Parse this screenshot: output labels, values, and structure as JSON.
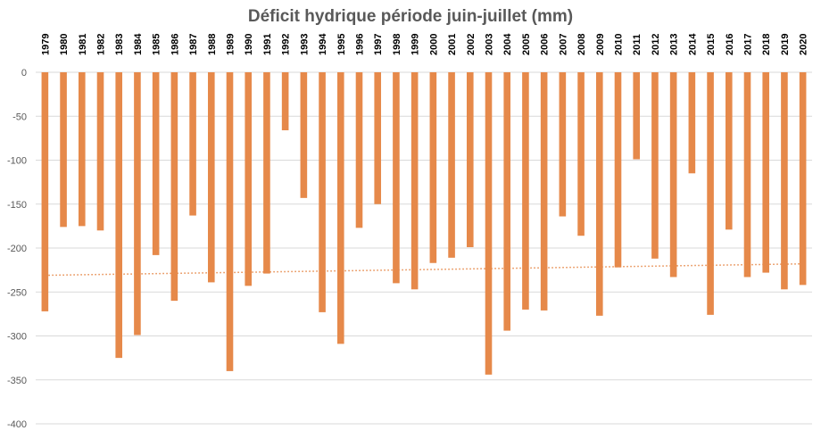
{
  "chart_data": {
    "type": "bar",
    "title": "Déficit hydrique période juin-juillet (mm)",
    "xlabel": "",
    "ylabel": "",
    "ylim": [
      -400,
      0
    ],
    "yticks": [
      0,
      -50,
      -100,
      -150,
      -200,
      -250,
      -300,
      -350,
      -400
    ],
    "categories": [
      "1979",
      "1980",
      "1981",
      "1982",
      "1983",
      "1984",
      "1985",
      "1986",
      "1987",
      "1988",
      "1989",
      "1990",
      "1991",
      "1992",
      "1993",
      "1994",
      "1995",
      "1996",
      "1997",
      "1998",
      "1999",
      "2000",
      "2001",
      "2002",
      "2003",
      "2004",
      "2005",
      "2006",
      "2007",
      "2008",
      "2009",
      "2010",
      "2011",
      "2012",
      "2013",
      "2014",
      "2015",
      "2016",
      "2017",
      "2018",
      "2019",
      "2020"
    ],
    "values": [
      -272,
      -176,
      -175,
      -180,
      -325,
      -299,
      -208,
      -260,
      -163,
      -239,
      -340,
      -243,
      -229,
      -66,
      -143,
      -273,
      -309,
      -177,
      -150,
      -240,
      -247,
      -217,
      -211,
      -199,
      -344,
      -294,
      -270,
      -271,
      -164,
      -186,
      -277,
      -222,
      -99,
      -212,
      -233,
      -115,
      -276,
      -179,
      -233,
      -228,
      -247,
      -242
    ],
    "grid": true,
    "legend": "none",
    "trendline": {
      "type": "linear",
      "start": -231,
      "end": -218,
      "style": "dotted"
    },
    "colors": {
      "bar": "#E6894A",
      "trend": "#E6894A",
      "grid": "#d9d9d9",
      "text": "#595959"
    }
  }
}
